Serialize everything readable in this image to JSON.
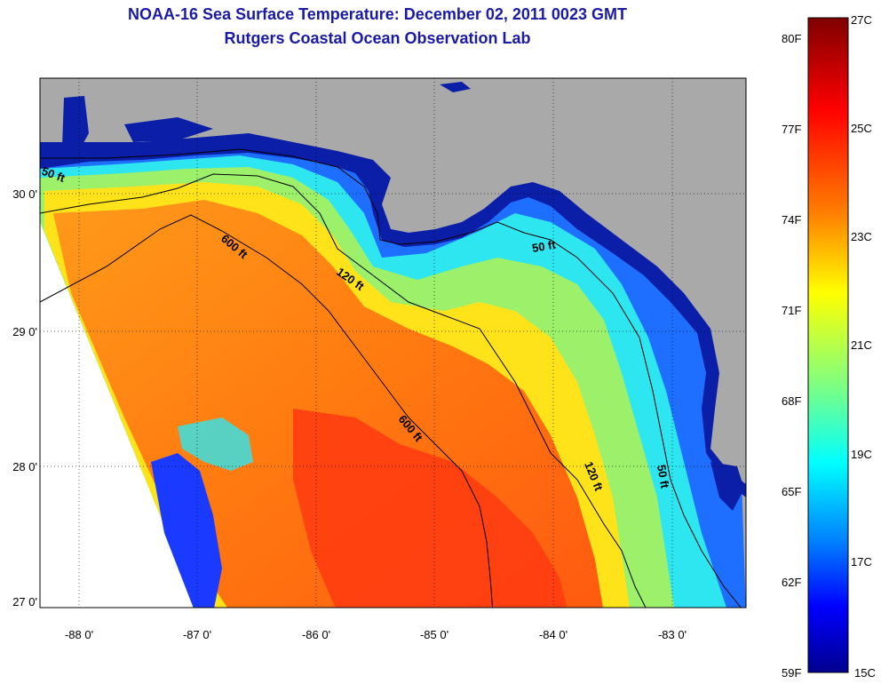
{
  "title": {
    "line1": "NOAA-16 Sea Surface Temperature:  December 02, 2011 0023 GMT",
    "line2": "Rutgers Coastal Ocean Observation Lab"
  },
  "map": {
    "lat_ticks": [
      "30 0'",
      "29 0'",
      "28 0'",
      "27 0'"
    ],
    "lon_ticks": [
      "-88 0'",
      "-87 0'",
      "-86 0'",
      "-85 0'",
      "-84 0'",
      "-83 0'"
    ],
    "contour_labels": [
      {
        "text": "50 ft"
      },
      {
        "text": "600 ft"
      },
      {
        "text": "120 ft"
      },
      {
        "text": "50 ft"
      },
      {
        "text": "600 ft"
      },
      {
        "text": "120 ft"
      },
      {
        "text": "50 ft"
      }
    ]
  },
  "colorbar": {
    "fahrenheit": [
      "80F",
      "77F",
      "74F",
      "71F",
      "68F",
      "65F",
      "62F",
      "59F"
    ],
    "celsius": [
      "27C",
      "25C",
      "23C",
      "21C",
      "19C",
      "17C",
      "15C"
    ],
    "colors": [
      "#7f0000",
      "#ff0000",
      "#ff8000",
      "#ffff00",
      "#80ff80",
      "#00ffff",
      "#0080ff",
      "#0000ff",
      "#00008f"
    ]
  },
  "colors": {
    "land": "#a9a9a9",
    "title": "#1a1aa6"
  }
}
